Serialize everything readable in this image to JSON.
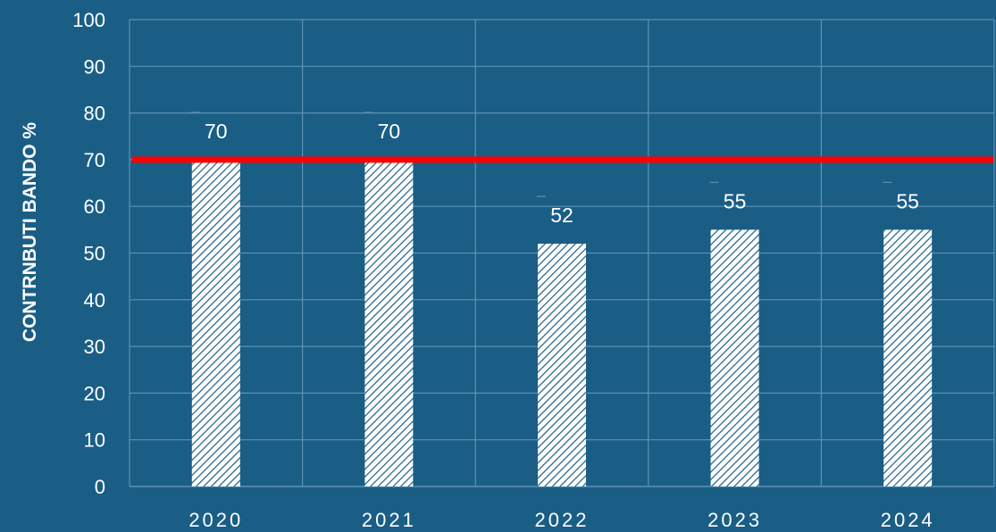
{
  "chart_data": {
    "type": "bar",
    "title": "",
    "xlabel": "",
    "ylabel": "CONTRNBUTI BANDO %",
    "categories": [
      "2020",
      "2021",
      "2022",
      "2023",
      "2024"
    ],
    "values": [
      70,
      70,
      52,
      55,
      55
    ],
    "data_labels": [
      "70",
      "70",
      "52",
      "55",
      "55"
    ],
    "ylim": [
      0,
      100
    ],
    "yticks": [
      "0",
      "10",
      "20",
      "30",
      "40",
      "50",
      "60",
      "70",
      "80",
      "90",
      "100"
    ],
    "reference_line": {
      "value": 70,
      "color": "#ff0000"
    },
    "grid": true,
    "legend": "none",
    "colors": {
      "background": "#1a5e86",
      "bar_fill": "#ffffff",
      "bar_hatch": "#1a5e86",
      "grid": "#5d92b3",
      "text": "#ffffff"
    }
  }
}
